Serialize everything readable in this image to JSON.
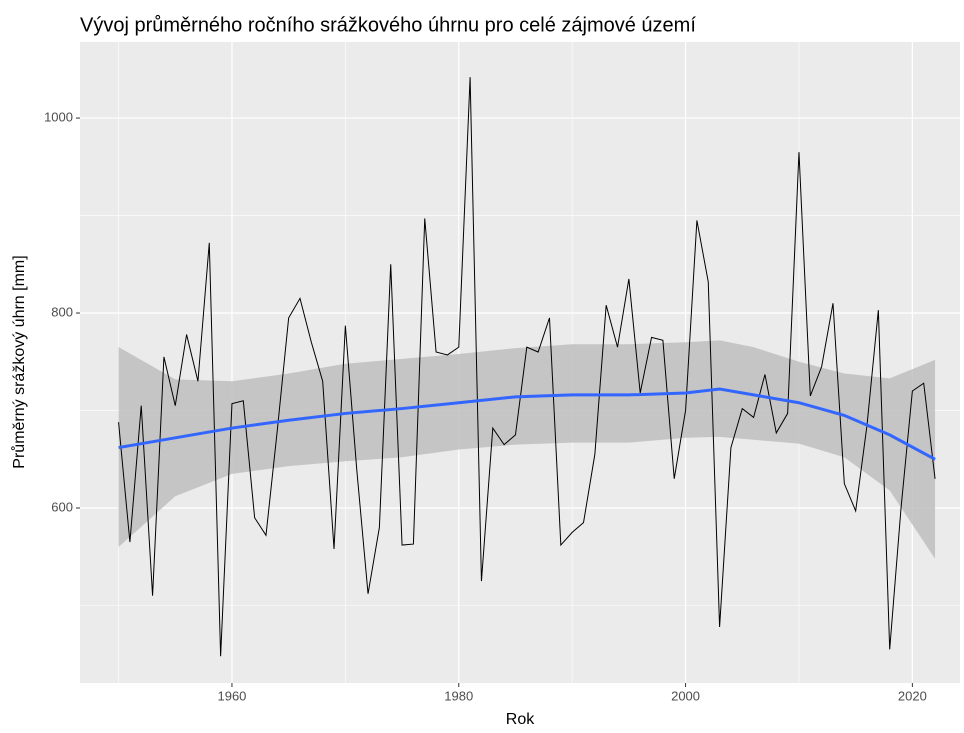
{
  "chart_data": {
    "type": "line",
    "title": "Vývoj průměrného ročního srážkového úhrnu pro celé zájmové území",
    "xlabel": "Rok",
    "ylabel": "Průměrný srážkový úhrn [mm]",
    "x": [
      1950,
      1951,
      1952,
      1953,
      1954,
      1955,
      1956,
      1957,
      1958,
      1959,
      1960,
      1961,
      1962,
      1963,
      1964,
      1965,
      1966,
      1967,
      1968,
      1969,
      1970,
      1971,
      1972,
      1973,
      1974,
      1975,
      1976,
      1977,
      1978,
      1979,
      1980,
      1981,
      1982,
      1983,
      1984,
      1985,
      1986,
      1987,
      1988,
      1989,
      1990,
      1991,
      1992,
      1993,
      1994,
      1995,
      1996,
      1997,
      1998,
      1999,
      2000,
      2001,
      2002,
      2003,
      2004,
      2005,
      2006,
      2007,
      2008,
      2009,
      2010,
      2011,
      2012,
      2013,
      2014,
      2015,
      2016,
      2017,
      2018,
      2019,
      2020,
      2021,
      2022
    ],
    "series": [
      {
        "color": "#000000",
        "values": [
          688,
          565,
          705,
          510,
          755,
          705,
          778,
          730,
          872,
          448,
          707,
          710,
          590,
          572,
          680,
          795,
          815,
          770,
          730,
          558,
          787,
          640,
          512,
          580,
          850,
          562,
          563,
          897,
          760,
          757,
          765,
          1042,
          525,
          682,
          665,
          675,
          765,
          760,
          795,
          562,
          575,
          585,
          655,
          808,
          765,
          835,
          718,
          775,
          772,
          630,
          700,
          895,
          832,
          478,
          662,
          702,
          693,
          737,
          677,
          697,
          965,
          715,
          745,
          810,
          625,
          597,
          685,
          803,
          455,
          600,
          720,
          728,
          630
        ]
      }
    ],
    "smooth": {
      "color": "#3366ff",
      "band_color": "#bebebe",
      "x": [
        1950,
        1955,
        1960,
        1965,
        1970,
        1975,
        1980,
        1985,
        1990,
        1995,
        2000,
        2003,
        2006,
        2010,
        2014,
        2018,
        2022
      ],
      "values": [
        662,
        672,
        682,
        690,
        697,
        702,
        708,
        714,
        716,
        716,
        718,
        722,
        716,
        708,
        695,
        675,
        650
      ],
      "lower": [
        560,
        612,
        635,
        643,
        648,
        652,
        660,
        665,
        667,
        667,
        672,
        673,
        670,
        666,
        652,
        618,
        548
      ],
      "upper": [
        765,
        732,
        730,
        738,
        748,
        753,
        758,
        764,
        768,
        768,
        770,
        772,
        765,
        750,
        738,
        733,
        752
      ]
    },
    "xlim": [
      1946.6,
      2024.2
    ],
    "ylim": [
      420.5,
      1078
    ],
    "xticks": [
      1960,
      1980,
      2000,
      2020
    ],
    "yticks": [
      600,
      800,
      1000
    ],
    "xminor": [
      1950,
      1970,
      1990,
      2010
    ],
    "yminor": [
      500,
      700,
      900
    ],
    "grid": true
  }
}
